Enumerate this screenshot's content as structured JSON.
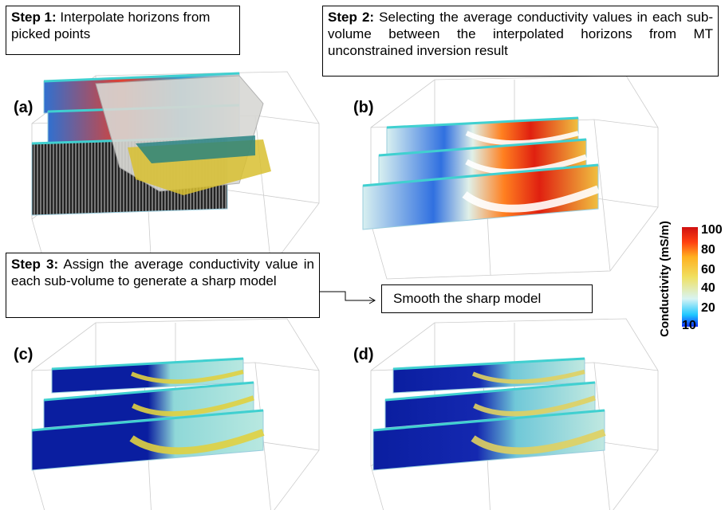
{
  "steps": [
    {
      "label": "Step 1:",
      "text": "Interpolate horizons from picked points"
    },
    {
      "label": "Step 2:",
      "text": "Selecting the average conductivity values in each sub-volume between the interpolated horizons from MT unconstrained inversion result"
    },
    {
      "label": "Step 3:",
      "text": "Assign the average conductivity value in each sub-volume to generate a sharp model"
    }
  ],
  "smooth_step": "Smooth the sharp model",
  "panels": [
    "(a)",
    "(b)",
    "(c)",
    "(d)"
  ],
  "colorbar": {
    "title": "Conductivity (mS/m)",
    "ticks": [
      100,
      80,
      60,
      40,
      20,
      10
    ]
  }
}
